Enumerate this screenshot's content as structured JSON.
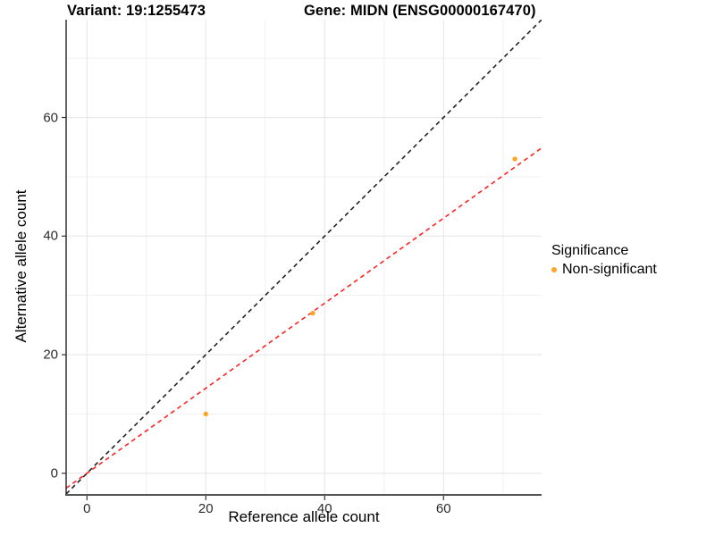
{
  "chart_data": {
    "type": "scatter",
    "title_left": "Variant: 19:1255473",
    "title_right": "Gene: MIDN (ENSG00000167470)",
    "xlabel": "Reference allele count",
    "ylabel": "Alternative allele count",
    "xlim": [
      -3.5,
      76.5
    ],
    "ylim": [
      -3.5,
      76.5
    ],
    "x_ticks": [
      0,
      20,
      40,
      60
    ],
    "y_ticks": [
      0,
      20,
      40,
      60
    ],
    "minor_gridlines": [
      10,
      30,
      50,
      70
    ],
    "grid": true,
    "series": [
      {
        "name": "Non-significant",
        "color": "#FFA425",
        "points": [
          {
            "x": 20,
            "y": 10
          },
          {
            "x": 38,
            "y": 27
          },
          {
            "x": 72,
            "y": 53
          }
        ]
      }
    ],
    "lines": [
      {
        "name": "identity-line",
        "slope": 1.0,
        "intercept": 0,
        "color": "#222222",
        "style": "dashed"
      },
      {
        "name": "fit-line",
        "slope": 0.717,
        "intercept": 0,
        "color": "#FF2222",
        "style": "dashed"
      }
    ],
    "legend": {
      "title": "Significance",
      "position": "right",
      "items": [
        {
          "label": "Non-significant",
          "color": "#FFA425",
          "marker": "circle"
        }
      ]
    },
    "colors": {
      "point": "#FFA425",
      "grid_major": "#E5E5E5",
      "grid_minor": "#F1F1F1",
      "axis_line_left": "#222222",
      "axis_line_bottom": "#555555",
      "tick": "#333333"
    }
  }
}
